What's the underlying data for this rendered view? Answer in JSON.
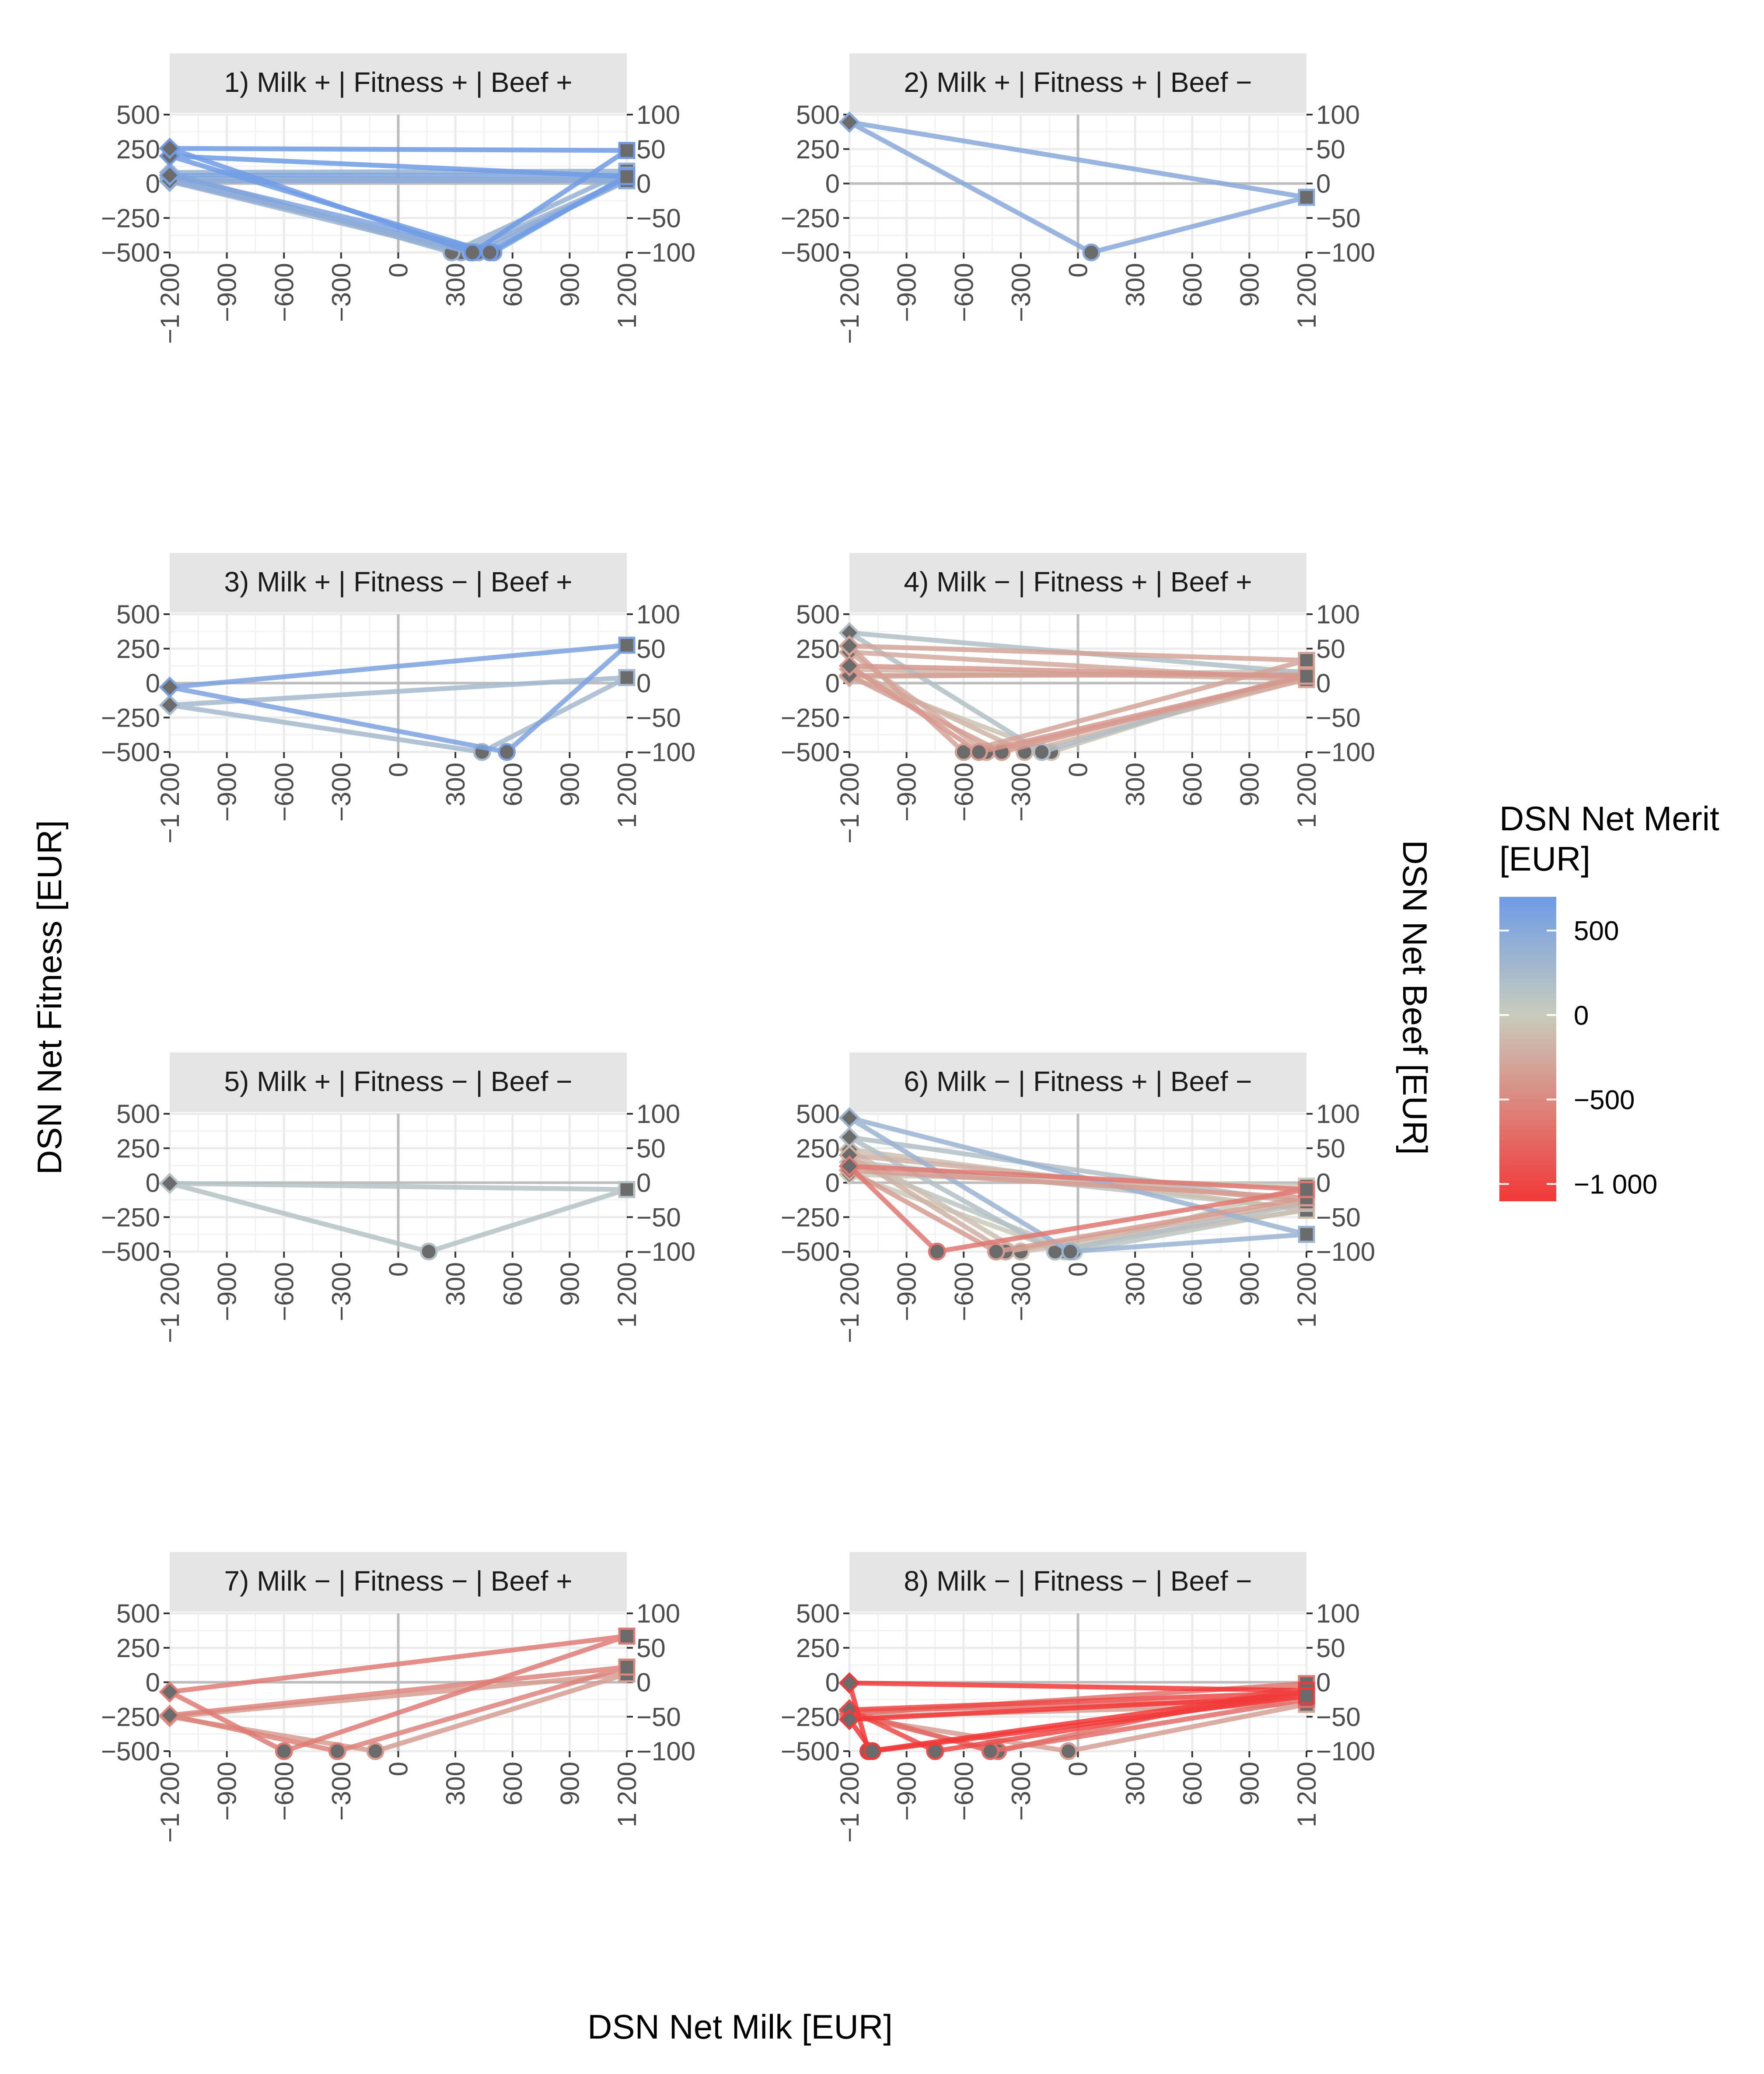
{
  "figure": {
    "x_axis_title": "DSN Net Milk [EUR]",
    "y_axis_title": "DSN Net Fitness [EUR]",
    "y2_axis_title": "DSN Net Beef [EUR]",
    "legend": {
      "title_line1": "DSN Net Merit",
      "title_line2": "[EUR]",
      "labels": [
        "500",
        "0",
        "−500",
        "−1 000"
      ],
      "values": [
        500,
        0,
        -500,
        -1000
      ],
      "range": [
        -1100,
        700
      ],
      "colors": {
        "high": "#6e9be6",
        "mid": "#c8ccbc",
        "low": "#f23838"
      }
    },
    "axes": {
      "x_ticks": [
        "−1 200",
        "−900",
        "−600",
        "−300",
        "0",
        "300",
        "600",
        "900",
        "1 200"
      ],
      "x_values": [
        -1200,
        -900,
        -600,
        -300,
        0,
        300,
        600,
        900,
        1200
      ],
      "left_ticks": [
        "500",
        "250",
        "0",
        "−250",
        "−500"
      ],
      "left_values": [
        500,
        250,
        0,
        -250,
        -500
      ],
      "right_ticks": [
        "100",
        "50",
        "0",
        "−50",
        "−100"
      ],
      "right_values": [
        100,
        50,
        0,
        -50,
        -100
      ]
    }
  },
  "chart_data": {
    "type": "line",
    "description": "Triangle plots per group: fitness at milk=-1200 (diamond), milk at fitness=-500 (circle), beef at milk=1200 (square); color = net merit",
    "xlabel": "DSN Net Milk [EUR]",
    "ylabel": "DSN Net Fitness [EUR]",
    "y2label": "DSN Net Beef [EUR]",
    "xlim": [
      -1200,
      1200
    ],
    "ylim": [
      -500,
      500
    ],
    "y2lim": [
      -100,
      100
    ],
    "panels": [
      {
        "title": "1) Milk + | Fitness + | Beef +",
        "triangles": [
          {
            "fitness": 255,
            "milk": 390,
            "beef": 48,
            "merit": 693
          },
          {
            "fitness": 200,
            "milk": 480,
            "beef": 10,
            "merit": 690
          },
          {
            "fitness": 80,
            "milk": 280,
            "beef": 18,
            "merit": 378
          },
          {
            "fitness": 60,
            "milk": 500,
            "beef": 12,
            "merit": 572
          },
          {
            "fitness": 40,
            "milk": 380,
            "beef": 5,
            "merit": 425
          },
          {
            "fitness": 20,
            "milk": 420,
            "beef": 4,
            "merit": 444
          },
          {
            "fitness": 15,
            "milk": 330,
            "beef": 6,
            "merit": 351
          }
        ]
      },
      {
        "title": "2) Milk + | Fitness + | Beef −",
        "triangles": [
          {
            "fitness": 445,
            "milk": 70,
            "beef": -20,
            "merit": 495
          }
        ]
      },
      {
        "title": "3) Milk + | Fitness − | Beef +",
        "triangles": [
          {
            "fitness": -30,
            "milk": 570,
            "beef": 55,
            "merit": 595
          },
          {
            "fitness": -160,
            "milk": 440,
            "beef": 8,
            "merit": 288
          }
        ]
      },
      {
        "title": "4) Milk − | Fitness + | Beef +",
        "triangles": [
          {
            "fitness": 365,
            "milk": -190,
            "beef": 15,
            "merit": 190
          },
          {
            "fitness": 270,
            "milk": -600,
            "beef": 33,
            "merit": -297
          },
          {
            "fitness": 225,
            "milk": -480,
            "beef": 5,
            "merit": -250
          },
          {
            "fitness": 125,
            "milk": -520,
            "beef": 10,
            "merit": -385
          },
          {
            "fitness": 100,
            "milk": -280,
            "beef": 6,
            "merit": -174
          },
          {
            "fitness": 55,
            "milk": -400,
            "beef": 12,
            "merit": -333
          },
          {
            "fitness": 45,
            "milk": -140,
            "beef": 17,
            "merit": -78
          }
        ]
      },
      {
        "title": "5) Milk + | Fitness − | Beef −",
        "triangles": [
          {
            "fitness": -5,
            "milk": 160,
            "beef": -10,
            "merit": 145
          }
        ]
      },
      {
        "title": "6) Milk − | Fitness + | Beef −",
        "triangles": [
          {
            "fitness": 470,
            "milk": -40,
            "beef": -75,
            "merit": 355
          },
          {
            "fitness": 330,
            "milk": -120,
            "beef": -30,
            "merit": 180
          },
          {
            "fitness": 240,
            "milk": -300,
            "beef": -40,
            "merit": -100
          },
          {
            "fitness": 200,
            "milk": -380,
            "beef": -28,
            "merit": -208
          },
          {
            "fitness": 150,
            "milk": -20,
            "beef": -38,
            "merit": 92
          },
          {
            "fitness": 120,
            "milk": -740,
            "beef": -10,
            "merit": -630
          },
          {
            "fitness": 90,
            "milk": -430,
            "beef": -22,
            "merit": -362
          },
          {
            "fitness": 60,
            "milk": -70,
            "beef": -5,
            "merit": -15
          }
        ]
      },
      {
        "title": "7) Milk − | Fitness − | Beef +",
        "triangles": [
          {
            "fitness": -70,
            "milk": -600,
            "beef": 67,
            "merit": -603
          },
          {
            "fitness": -240,
            "milk": -320,
            "beef": 22,
            "merit": -538
          },
          {
            "fitness": -250,
            "milk": -120,
            "beef": 12,
            "merit": -358
          }
        ]
      },
      {
        "title": "8) Milk − | Fitness − | Beef −",
        "triangles": [
          {
            "fitness": -5,
            "milk": -1100,
            "beef": -12,
            "merit": -1117
          },
          {
            "fitness": -200,
            "milk": -750,
            "beef": -15,
            "merit": -965
          },
          {
            "fitness": -210,
            "milk": -460,
            "beef": -25,
            "merit": -695
          },
          {
            "fitness": -230,
            "milk": -420,
            "beef": -2,
            "merit": -652
          },
          {
            "fitness": -250,
            "milk": -50,
            "beef": -32,
            "merit": -332
          },
          {
            "fitness": -270,
            "milk": -1080,
            "beef": -20,
            "merit": -1370
          }
        ]
      }
    ]
  }
}
